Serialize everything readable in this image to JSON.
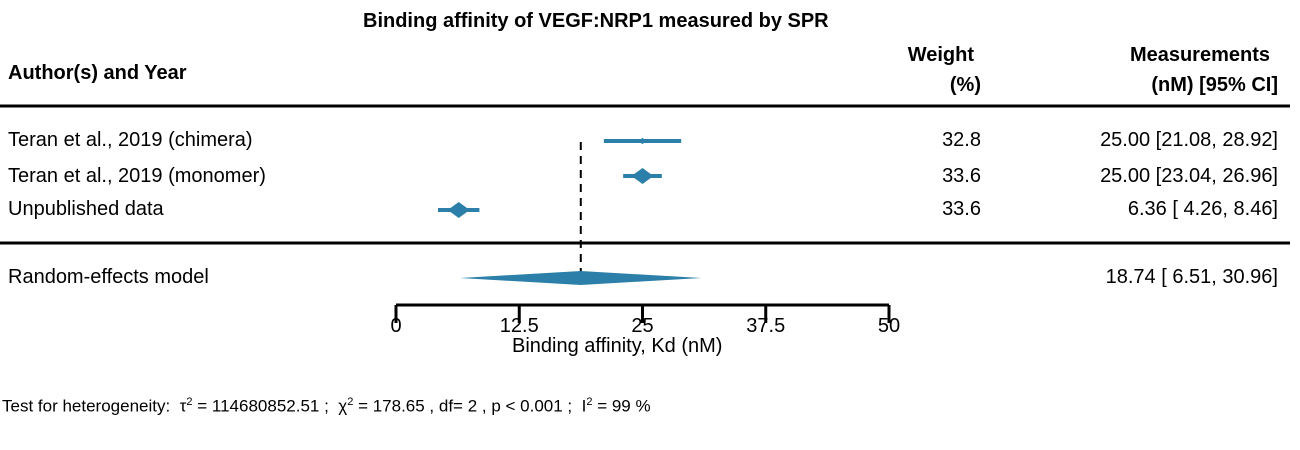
{
  "chart_data": {
    "type": "forest",
    "title": "Binding affinity of VEGF:NRP1 measured by SPR",
    "columns": {
      "study": "Author(s) and Year",
      "weight_line1": "Weight",
      "weight_line2": "(%)",
      "meas_line1": "Measurements",
      "meas_line2": "(nM) [95% CI]"
    },
    "studies": [
      {
        "label": "Teran et al., 2019 (chimera)",
        "estimate": 25.0,
        "ci_low": 21.08,
        "ci_high": 28.92,
        "weight": "32.8",
        "text": "25.00 [21.08, 28.92]"
      },
      {
        "label": "Teran et al., 2019 (monomer)",
        "estimate": 25.0,
        "ci_low": 23.04,
        "ci_high": 26.96,
        "weight": "33.6",
        "text": "25.00 [23.04, 26.96]"
      },
      {
        "label": "Unpublished data",
        "estimate": 6.36,
        "ci_low": 4.26,
        "ci_high": 8.46,
        "weight": "33.6",
        "text": "6.36 [ 4.26,  8.46]"
      }
    ],
    "summary": {
      "label": "Random-effects model",
      "estimate": 18.74,
      "ci_low": 6.51,
      "ci_high": 30.96,
      "text": "18.74 [ 6.51, 30.96]"
    },
    "xaxis": {
      "ticks": [
        0,
        12.5,
        25,
        37.5,
        50
      ],
      "tick_labels": [
        "0",
        "12.5",
        "25",
        "37.5",
        "50"
      ],
      "label": "Binding affinity, Kd (nM)",
      "xlim": [
        0,
        50
      ]
    },
    "heterogeneity": {
      "prefix": "Test for heterogeneity:",
      "tau_sym": "τ",
      "tau_val": "= 114680852.51 ;",
      "chi_sym": "χ",
      "chi_val": "= 178.65 , df= 2 ,  p < 0.001 ;",
      "i_sym": "I",
      "i_val": "= 99 %",
      "sup": "2"
    },
    "colors": {
      "marker": "#2c7fa8",
      "line": "#000000"
    }
  }
}
